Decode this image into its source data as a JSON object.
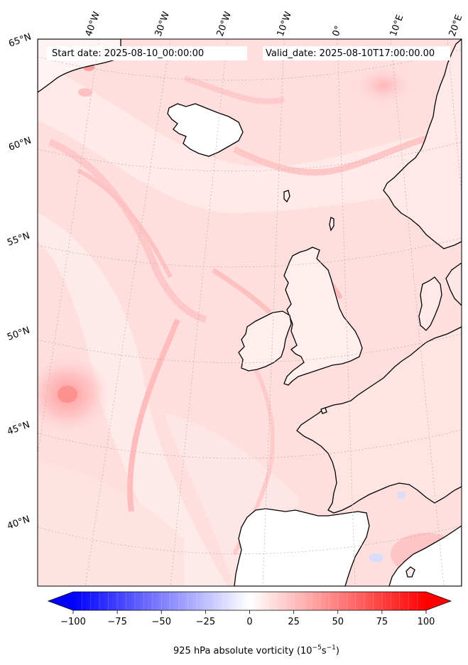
{
  "map": {
    "start_label": "Start date: 2025-08-10_00:00:00",
    "valid_label": "Valid_date: 2025-08-10T17:00:00.00",
    "lon_labels": [
      "40°W",
      "30°W",
      "20°W",
      "10°W",
      "0°",
      "10°E",
      "20°E"
    ],
    "lat_labels": [
      "65°N",
      "60°N",
      "55°N",
      "50°N",
      "45°N",
      "40°N"
    ],
    "field": "925 hPa absolute vorticity"
  },
  "colorbar": {
    "label": "925 hPa absolute vorticity (10",
    "label_exp1": "−5",
    "label_mid": "s",
    "label_exp2": "−1",
    "label_end": ")",
    "min": -100,
    "max": 100,
    "ticks": [
      "−100",
      "−75",
      "−50",
      "−25",
      "0",
      "25",
      "50",
      "75",
      "100"
    ],
    "negative_color": "#0000ff",
    "zero_color": "#ffffff",
    "positive_color": "#ff0000"
  },
  "colors": {
    "land_outline": "#000000",
    "background_field": "#ffe0e0",
    "graticule": "#b0b0b0"
  }
}
